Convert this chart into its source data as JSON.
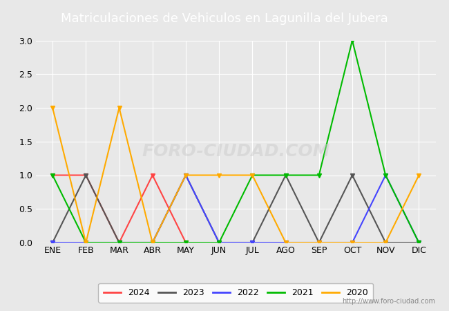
{
  "title": "Matriculaciones de Vehiculos en Lagunilla del Jubera",
  "months": [
    "ENE",
    "FEB",
    "MAR",
    "ABR",
    "MAY",
    "JUN",
    "JUL",
    "AGO",
    "SEP",
    "OCT",
    "NOV",
    "DIC"
  ],
  "series": {
    "2024": {
      "color": "#ff4444",
      "data": [
        1,
        1,
        0,
        1,
        0,
        null,
        null,
        null,
        null,
        null,
        null,
        null
      ]
    },
    "2023": {
      "color": "#555555",
      "data": [
        0,
        1,
        0,
        0,
        1,
        0,
        0,
        1,
        0,
        1,
        0,
        0
      ]
    },
    "2022": {
      "color": "#4444ff",
      "data": [
        0,
        0,
        0,
        0,
        1,
        0,
        0,
        0,
        0,
        0,
        1,
        0
      ]
    },
    "2021": {
      "color": "#00bb00",
      "data": [
        1,
        0,
        0,
        0,
        0,
        0,
        1,
        1,
        1,
        3,
        1,
        0
      ]
    },
    "2020": {
      "color": "#ffaa00",
      "data": [
        2,
        0,
        2,
        0,
        1,
        1,
        1,
        0,
        0,
        0,
        0,
        1
      ]
    }
  },
  "ylim": [
    0,
    3.0
  ],
  "yticks": [
    0.0,
    0.5,
    1.0,
    1.5,
    2.0,
    2.5,
    3.0
  ],
  "background_color": "#e8e8e8",
  "plot_bg_color": "#e8e8e8",
  "title_bg_color": "#4472c4",
  "title_text_color": "#ffffff",
  "watermark": "http://www.foro-ciudad.com",
  "legend_years": [
    "2024",
    "2023",
    "2022",
    "2021",
    "2020"
  ]
}
